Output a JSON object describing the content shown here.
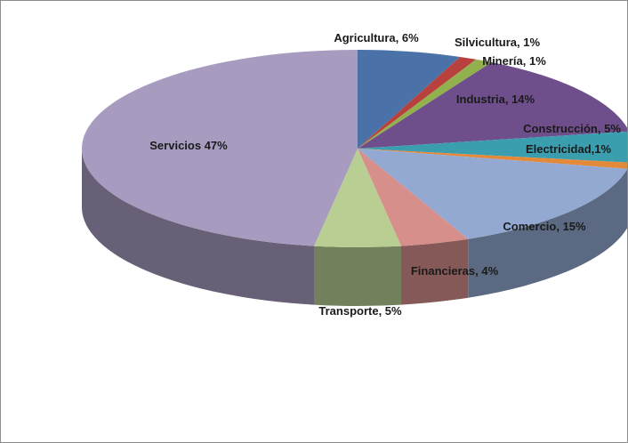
{
  "chart_data": {
    "type": "pie",
    "style": "3d-exploded-none",
    "title": "",
    "slices": [
      {
        "label": "Agricultura, 6%",
        "value": 6,
        "color": "#4A72A8"
      },
      {
        "label": "Silvicultura, 1%",
        "value": 1,
        "color": "#B8413E"
      },
      {
        "label": "Minería, 1%",
        "value": 1,
        "color": "#92B04E"
      },
      {
        "label": "Industria, 14%",
        "value": 14,
        "color": "#6E4F8C"
      },
      {
        "label": "Construcción, 5%",
        "value": 5,
        "color": "#3A9EAF"
      },
      {
        "label": "Electricidad,1%",
        "value": 1,
        "color": "#E3893A"
      },
      {
        "label": "Comercio, 15%",
        "value": 15,
        "color": "#93A9D2"
      },
      {
        "label": "Financieras, 4%",
        "value": 4,
        "color": "#D78F8C"
      },
      {
        "label": "Transporte, 5%",
        "value": 5,
        "color": "#B8CE93"
      },
      {
        "label": "Servicios 47%",
        "value": 47,
        "color": "#A79BBF"
      }
    ],
    "legend": "none",
    "data_labels": "on-slice"
  }
}
